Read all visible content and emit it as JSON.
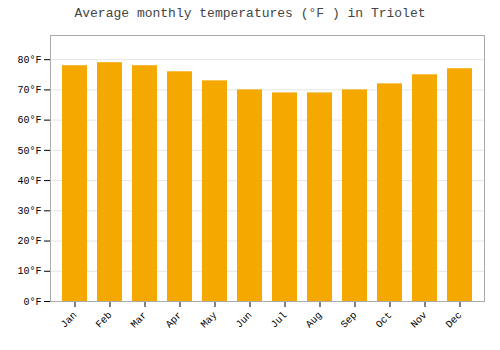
{
  "chart_data": {
    "type": "bar",
    "title": "Average monthly temperatures (°F ) in Triolet",
    "categories": [
      "Jan",
      "Feb",
      "Mar",
      "Apr",
      "May",
      "Jun",
      "Jul",
      "Aug",
      "Sep",
      "Oct",
      "Nov",
      "Dec"
    ],
    "values": [
      78,
      79,
      78,
      76,
      73,
      70,
      69,
      69,
      70,
      72,
      75,
      77
    ],
    "color": "#F5A800",
    "ylim": [
      0,
      88
    ],
    "yticks": [
      {
        "value": 0,
        "label": "0°F"
      },
      {
        "value": 10,
        "label": "10°F"
      },
      {
        "value": 20,
        "label": "20°F"
      },
      {
        "value": 30,
        "label": "30°F"
      },
      {
        "value": 40,
        "label": "40°F"
      },
      {
        "value": 50,
        "label": "50°F"
      },
      {
        "value": 60,
        "label": "60°F"
      },
      {
        "value": 70,
        "label": "70°F"
      },
      {
        "value": 80,
        "label": "80°F"
      }
    ],
    "grid": true
  }
}
